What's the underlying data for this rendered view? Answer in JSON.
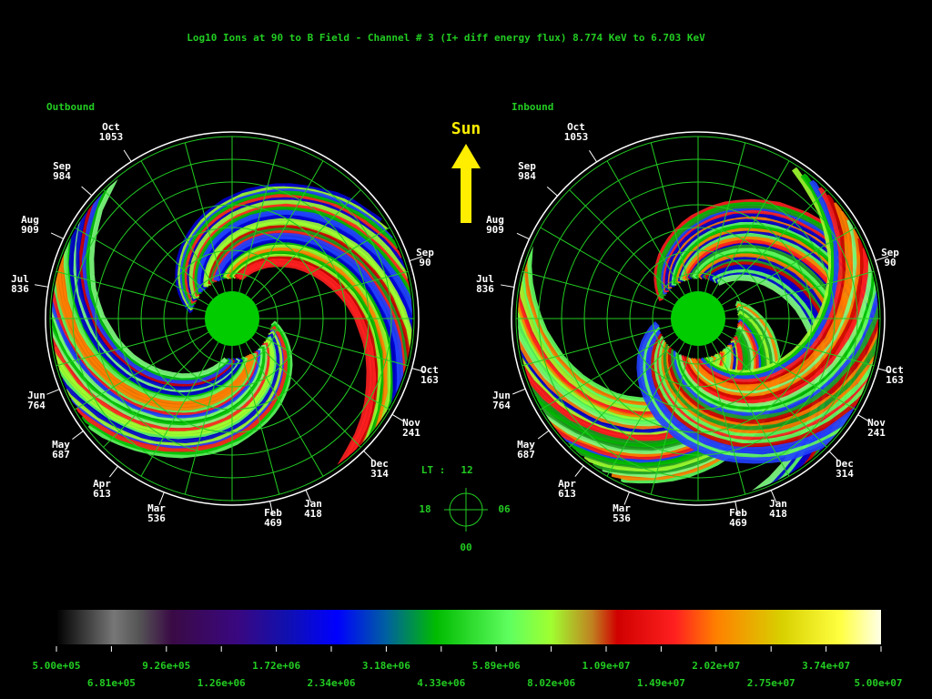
{
  "title": "Log10 Ions at 90 to B Field - Channel # 3 (I+ diff energy flux)  8.774 KeV to  6.703 KeV",
  "sun": "Sun",
  "panels": [
    {
      "label": "Outbound"
    },
    {
      "label": "Inbound"
    }
  ],
  "months": [
    {
      "month": "Oct",
      "day": "1053"
    },
    {
      "month": "Sep",
      "day": "984"
    },
    {
      "month": "Aug",
      "day": "909"
    },
    {
      "month": "Jul",
      "day": "836"
    },
    {
      "month": "Jun",
      "day": "764"
    },
    {
      "month": "May",
      "day": "687"
    },
    {
      "month": "Apr",
      "day": "613"
    },
    {
      "month": "Mar",
      "day": "536"
    },
    {
      "month": "Feb",
      "day": "469"
    },
    {
      "month": "Jan",
      "day": "418"
    },
    {
      "month": "Dec",
      "day": "314"
    },
    {
      "month": "Nov",
      "day": "241"
    },
    {
      "month": "Oct",
      "day": "163"
    },
    {
      "month": "Sep",
      "day": "90"
    }
  ],
  "compass": {
    "lt": "LT :",
    "top": "12",
    "left": "18",
    "right": "06",
    "bottom": "00"
  },
  "colorbar": {
    "labels": [
      "5.00e+05",
      "6.81e+05",
      "9.26e+05",
      "1.26e+06",
      "1.72e+06",
      "2.34e+06",
      "3.18e+06",
      "4.33e+06",
      "5.89e+06",
      "8.02e+06",
      "1.09e+07",
      "1.49e+07",
      "2.02e+07",
      "2.75e+07",
      "3.74e+07",
      "5.00e+07"
    ]
  }
}
